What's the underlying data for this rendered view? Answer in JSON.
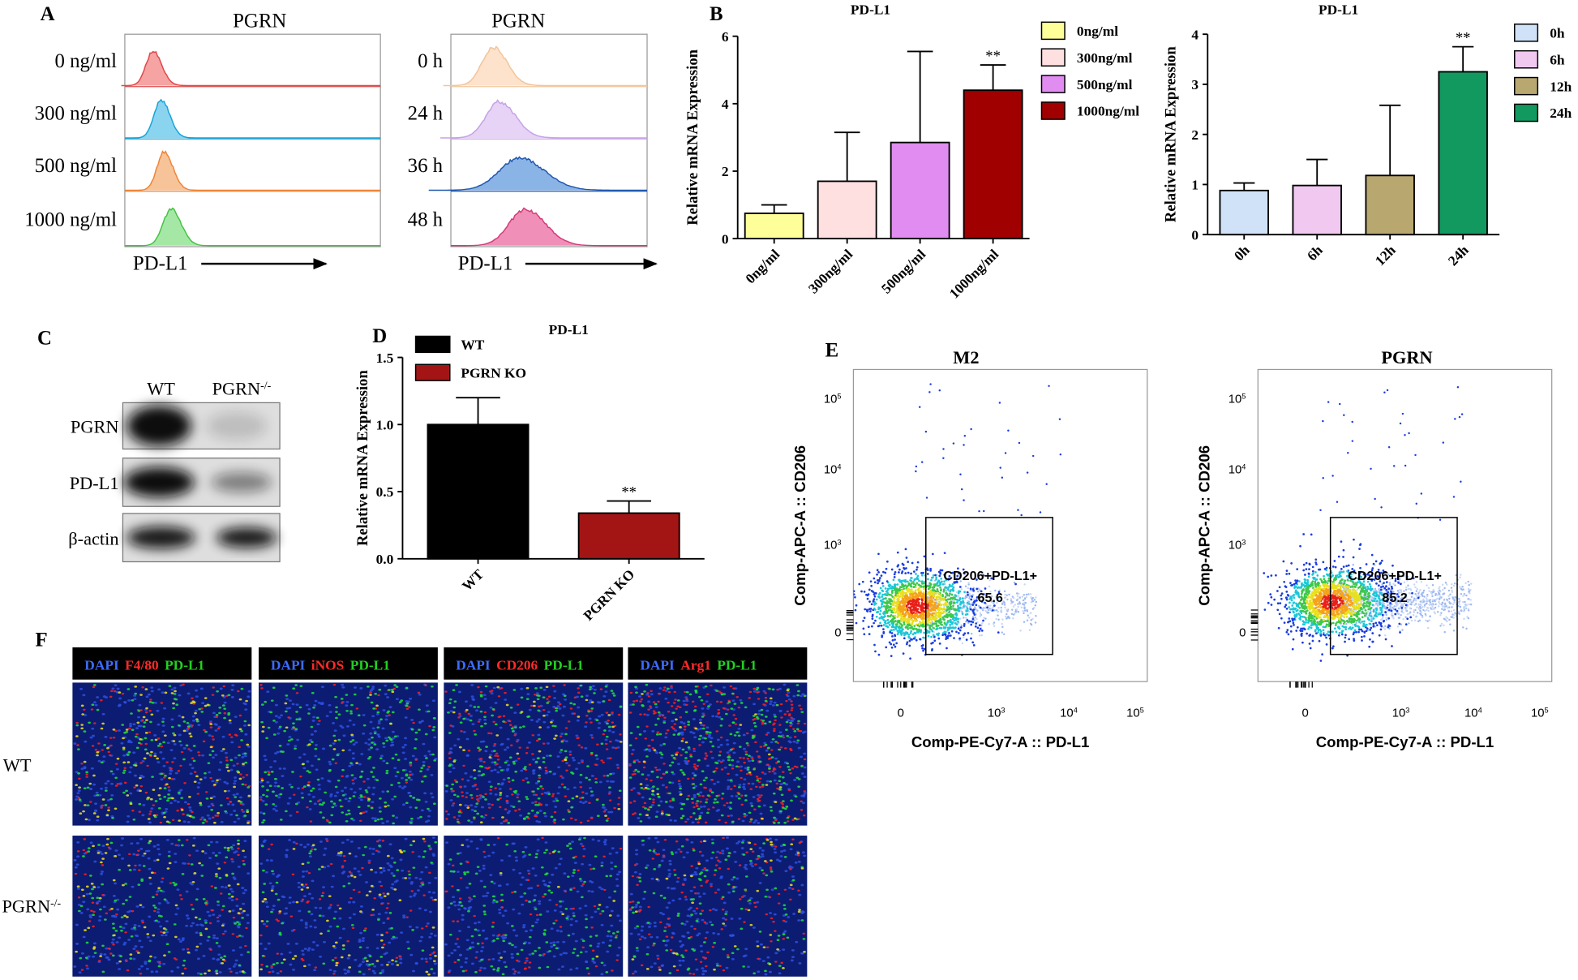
{
  "panel_labels": [
    "A",
    "B",
    "C",
    "D",
    "E",
    "F"
  ],
  "panel_a": {
    "left": {
      "title": "PGRN",
      "rows": [
        "0 ng/ml",
        "300 ng/ml",
        "500 ng/ml",
        "1000 ng/ml"
      ],
      "axis_label": "PD-L1"
    },
    "right": {
      "title": "PGRN",
      "rows": [
        "0 h",
        "24 h",
        "36 h",
        "48 h"
      ],
      "axis_label": "PD-L1"
    }
  },
  "chart_data": [
    {
      "type": "bar",
      "title": "PD-L1",
      "y_label": "Relative mRNA Expression",
      "categories": [
        "0ng/ml",
        "300ng/ml",
        "500ng/ml",
        "1000ng/ml"
      ],
      "values": [
        0.75,
        1.7,
        2.85,
        4.4
      ],
      "errors": [
        0.25,
        1.45,
        2.7,
        0.75
      ],
      "value_annotations": [
        null,
        null,
        null,
        "**"
      ],
      "colors": [
        "#ffff99",
        "#ffe0e0",
        "#e08cf0",
        "#a00000"
      ],
      "ylim": [
        0,
        6
      ],
      "yticks": [
        0,
        2,
        4,
        6
      ],
      "legend": "right"
    },
    {
      "type": "bar",
      "title": "PD-L1",
      "y_label": "Relative mRNA Expression",
      "categories": [
        "0h",
        "6h",
        "12h",
        "24h"
      ],
      "values": [
        0.88,
        0.98,
        1.18,
        3.25
      ],
      "errors": [
        0.15,
        0.52,
        1.4,
        0.5
      ],
      "value_annotations": [
        null,
        null,
        null,
        "**"
      ],
      "colors": [
        "#cfe2f7",
        "#f0c8f0",
        "#b8a870",
        "#119960"
      ],
      "ylim": [
        0,
        4
      ],
      "yticks": [
        0,
        1,
        2,
        3,
        4
      ],
      "legend": "right"
    },
    {
      "type": "bar",
      "title": "PD-L1",
      "y_label": "Relative mRNA Expression",
      "categories": [
        "WT",
        "PGRN KO"
      ],
      "values": [
        1.0,
        0.34
      ],
      "errors": [
        0.2,
        0.09
      ],
      "value_annotations": [
        null,
        "**"
      ],
      "colors": [
        "#000000",
        "#a31515"
      ],
      "ylim": [
        0,
        1.5
      ],
      "yticks": [
        {
          "value": 0,
          "label": "0.0"
        },
        0.5,
        {
          "value": 1,
          "label": "1.0"
        },
        1.5
      ],
      "legend": "top-left"
    }
  ],
  "panel_c": {
    "columns": [
      "WT",
      {
        "base": "PGRN",
        "sup": "-/-"
      }
    ],
    "rows": [
      "PGRN",
      "PD-L1",
      "β-actin"
    ]
  },
  "panel_e": {
    "x_label": "Comp-PE-Cy7-A :: PD-L1",
    "y_label": "Comp-APC-A :: CD206",
    "x_ticks": [
      "0",
      {
        "base": "10",
        "sup": "3"
      },
      {
        "base": "10",
        "sup": "4"
      },
      {
        "base": "10",
        "sup": "5"
      }
    ],
    "y_ticks": [
      {
        "base": "10",
        "sup": "5"
      },
      {
        "base": "10",
        "sup": "4"
      },
      {
        "base": "10",
        "sup": "3"
      },
      "0"
    ],
    "plots": [
      {
        "title": "M2",
        "gate_label": "CD206+PD-L1+",
        "gate_value": 65.6
      },
      {
        "title": "PGRN",
        "gate_label": "CD206+PD-L1+",
        "gate_value": 85.2
      }
    ]
  },
  "panel_f": {
    "headers": [
      [
        "DAPI",
        "F4/80",
        "PD-L1"
      ],
      [
        "DAPI",
        "iNOS",
        "PD-L1"
      ],
      [
        "DAPI",
        "CD206",
        "PD-L1"
      ],
      [
        "DAPI",
        "Arg1",
        "PD-L1"
      ]
    ],
    "rows": [
      "WT",
      {
        "base": "PGRN",
        "sup": "-/-"
      }
    ]
  }
}
